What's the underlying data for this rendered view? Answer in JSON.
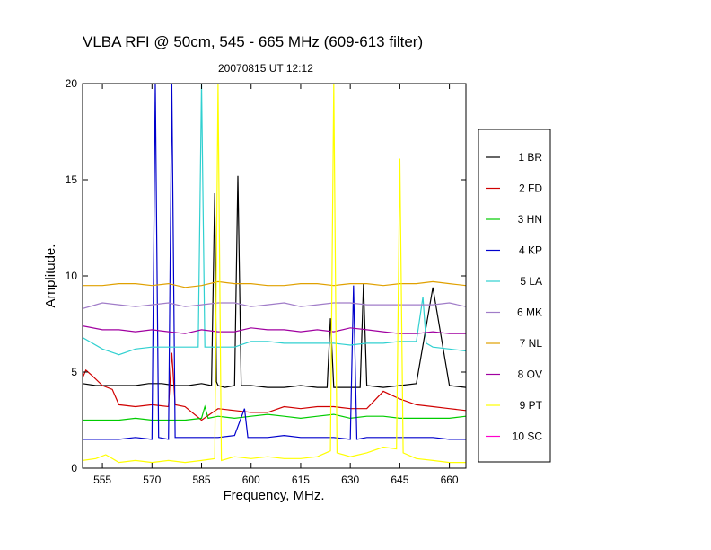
{
  "chart_data": {
    "type": "line",
    "title": "VLBA RFI @ 50cm, 545 - 665 MHz  (609-613 filter)",
    "subtitle": "20070815   UT 12:12",
    "xlabel": "Frequency, MHz.",
    "ylabel": "Amplitude.",
    "xlim": [
      549,
      665
    ],
    "ylim": [
      0,
      20
    ],
    "xticks": [
      "555",
      "570",
      "585",
      "600",
      "615",
      "630",
      "645",
      "660"
    ],
    "xtick_values": [
      555,
      570,
      585,
      600,
      615,
      630,
      645,
      660
    ],
    "yticks": [
      "0",
      "5",
      "10",
      "15",
      "20"
    ],
    "ytick_values": [
      0,
      5,
      10,
      15,
      20
    ],
    "grid": false,
    "legend_position": "right",
    "series": [
      {
        "name": "1 BR",
        "color": "#000000",
        "x": [
          549,
          553,
          557,
          561,
          565,
          569,
          573,
          577,
          581,
          585,
          588,
          589,
          589.5,
          590,
          592,
          595,
          596,
          597,
          600,
          605,
          610,
          615,
          620,
          623,
          624,
          625,
          630,
          633,
          634,
          635,
          640,
          645,
          650,
          655,
          660,
          665
        ],
        "y": [
          4.4,
          4.3,
          4.3,
          4.3,
          4.3,
          4.4,
          4.4,
          4.3,
          4.3,
          4.4,
          4.3,
          14.3,
          4.5,
          4.3,
          4.2,
          4.3,
          15.2,
          4.3,
          4.3,
          4.2,
          4.2,
          4.3,
          4.2,
          4.2,
          7.8,
          4.2,
          4.2,
          4.2,
          9.6,
          4.3,
          4.2,
          4.3,
          4.4,
          9.4,
          4.3,
          4.2
        ]
      },
      {
        "name": "2 FD",
        "color": "#d00000",
        "x": [
          549,
          550,
          552,
          555,
          558,
          560,
          565,
          570,
          575,
          576,
          577,
          580,
          585,
          590,
          595,
          600,
          605,
          610,
          615,
          620,
          625,
          630,
          635,
          640,
          645,
          650,
          655,
          660,
          665
        ],
        "y": [
          4.7,
          5.1,
          4.8,
          4.3,
          4.1,
          3.3,
          3.2,
          3.3,
          3.2,
          6.0,
          3.3,
          3.2,
          2.5,
          3.1,
          3.0,
          2.9,
          2.9,
          3.2,
          3.1,
          3.2,
          3.2,
          3.1,
          3.1,
          4.0,
          3.6,
          3.3,
          3.2,
          3.1,
          3.0
        ]
      },
      {
        "name": "3 HN",
        "color": "#00cc00",
        "x": [
          549,
          555,
          560,
          565,
          570,
          575,
          580,
          585,
          586,
          587,
          590,
          595,
          600,
          605,
          610,
          615,
          620,
          625,
          630,
          635,
          640,
          645,
          650,
          655,
          660,
          665
        ],
        "y": [
          2.5,
          2.5,
          2.5,
          2.6,
          2.5,
          2.5,
          2.5,
          2.6,
          3.2,
          2.6,
          2.7,
          2.6,
          2.7,
          2.8,
          2.7,
          2.6,
          2.7,
          2.8,
          2.6,
          2.7,
          2.7,
          2.6,
          2.6,
          2.6,
          2.6,
          2.7
        ]
      },
      {
        "name": "4 KP",
        "color": "#0000cc",
        "x": [
          549,
          555,
          560,
          565,
          570,
          571,
          572,
          575,
          576,
          577,
          580,
          585,
          590,
          595,
          598,
          599,
          600,
          605,
          610,
          615,
          620,
          625,
          630,
          631,
          632,
          635,
          640,
          645,
          650,
          655,
          660,
          665
        ],
        "y": [
          1.5,
          1.5,
          1.5,
          1.6,
          1.5,
          20,
          1.6,
          1.5,
          20,
          1.6,
          1.6,
          1.6,
          1.6,
          1.7,
          3.1,
          1.6,
          1.6,
          1.6,
          1.7,
          1.6,
          1.6,
          1.6,
          1.5,
          9.5,
          1.5,
          1.6,
          1.6,
          1.6,
          1.6,
          1.6,
          1.5,
          1.5
        ]
      },
      {
        "name": "5 LA",
        "color": "#30d0d0",
        "x": [
          549,
          555,
          560,
          565,
          570,
          575,
          580,
          584,
          585,
          586,
          590,
          595,
          600,
          605,
          610,
          615,
          620,
          625,
          630,
          635,
          640,
          645,
          650,
          652,
          653,
          655,
          660,
          665
        ],
        "y": [
          6.8,
          6.2,
          5.9,
          6.2,
          6.3,
          6.3,
          6.3,
          6.3,
          20,
          6.3,
          6.3,
          6.3,
          6.6,
          6.6,
          6.5,
          6.5,
          6.5,
          6.5,
          6.4,
          6.5,
          6.5,
          6.6,
          6.6,
          8.9,
          6.5,
          6.3,
          6.2,
          6.1
        ]
      },
      {
        "name": "6 MK",
        "color": "#a07cc8",
        "x": [
          549,
          555,
          560,
          565,
          570,
          575,
          580,
          585,
          590,
          595,
          600,
          605,
          610,
          615,
          620,
          625,
          630,
          635,
          640,
          645,
          650,
          655,
          660,
          665
        ],
        "y": [
          8.3,
          8.6,
          8.5,
          8.4,
          8.5,
          8.6,
          8.4,
          8.5,
          8.6,
          8.6,
          8.4,
          8.5,
          8.6,
          8.4,
          8.5,
          8.6,
          8.6,
          8.5,
          8.5,
          8.5,
          8.5,
          8.5,
          8.6,
          8.4
        ]
      },
      {
        "name": "7 NL",
        "color": "#e0a000",
        "x": [
          549,
          555,
          560,
          565,
          570,
          575,
          580,
          585,
          590,
          595,
          600,
          605,
          610,
          615,
          620,
          625,
          630,
          635,
          640,
          645,
          650,
          655,
          660,
          665
        ],
        "y": [
          9.5,
          9.5,
          9.6,
          9.6,
          9.5,
          9.6,
          9.4,
          9.5,
          9.7,
          9.6,
          9.6,
          9.5,
          9.5,
          9.6,
          9.6,
          9.5,
          9.6,
          9.6,
          9.5,
          9.6,
          9.6,
          9.7,
          9.6,
          9.5
        ]
      },
      {
        "name": "8 OV",
        "color": "#a000a0",
        "x": [
          549,
          555,
          560,
          565,
          570,
          575,
          580,
          585,
          590,
          595,
          600,
          605,
          610,
          615,
          620,
          625,
          630,
          635,
          640,
          645,
          650,
          655,
          660,
          665
        ],
        "y": [
          7.4,
          7.2,
          7.2,
          7.1,
          7.2,
          7.1,
          7.0,
          7.2,
          7.1,
          7.1,
          7.3,
          7.2,
          7.2,
          7.1,
          7.2,
          7.1,
          7.3,
          7.2,
          7.1,
          7.0,
          7.0,
          7.1,
          7.0,
          7.0
        ]
      },
      {
        "name": "9 PT",
        "color": "#ffff00",
        "x": [
          549,
          553,
          556,
          560,
          565,
          570,
          575,
          580,
          585,
          589,
          590,
          591,
          595,
          600,
          605,
          610,
          615,
          620,
          624,
          625,
          626,
          630,
          635,
          640,
          644,
          645,
          646,
          650,
          655,
          660,
          665
        ],
        "y": [
          0.4,
          0.5,
          0.7,
          0.3,
          0.4,
          0.3,
          0.4,
          0.3,
          0.4,
          0.5,
          20,
          0.4,
          0.6,
          0.5,
          0.6,
          0.5,
          0.5,
          0.6,
          0.9,
          20,
          0.8,
          0.6,
          0.8,
          1.1,
          1.0,
          16.1,
          0.8,
          0.5,
          0.4,
          0.3,
          0.3
        ]
      },
      {
        "name": "10 SC",
        "color": "#ff00cc",
        "x": [],
        "y": []
      }
    ]
  }
}
